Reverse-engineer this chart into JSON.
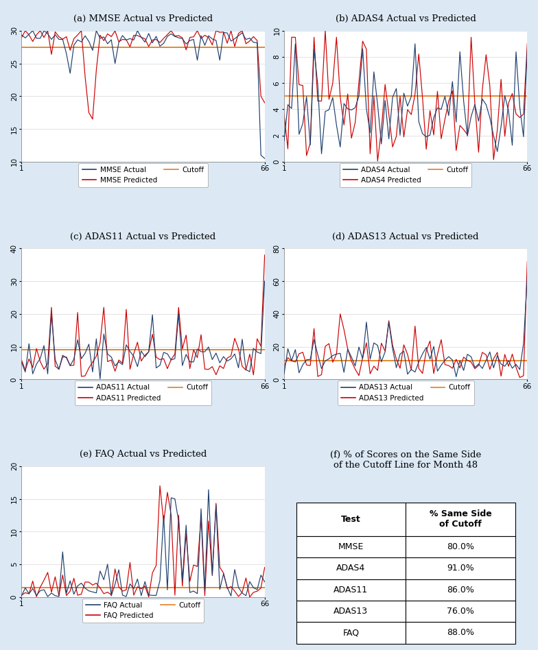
{
  "fig_bg_color": "#dce9f5",
  "plot_bg_color": "#ffffff",
  "panel_bg_color": "#dce9f5",
  "blue_color": "#1f3f6e",
  "red_color": "#cc0000",
  "orange_color": "#e08020",
  "grid_color": "#e8e8e8",
  "mmse_cutoff": 27.5,
  "adas4_cutoff": 5.0,
  "adas11_cutoff": 9.0,
  "adas13_cutoff": 11.5,
  "faq_cutoff": 1.5,
  "table_rows": [
    [
      "MMSE",
      "80.0%"
    ],
    [
      "ADAS4",
      "91.0%"
    ],
    [
      "ADAS11",
      "86.0%"
    ],
    [
      "ADAS13",
      "76.0%"
    ],
    [
      "FAQ",
      "88.0%"
    ]
  ],
  "subplot_titles": [
    "(a) MMSE Actual vs Predicted",
    "(b) ADAS4 Actual vs Predicted",
    "(c) ADAS11 Actual vs Predicted",
    "(d) ADAS13 Actual vs Predicted",
    "(e) FAQ Actual vs Predicted",
    "(f) % of Scores on the Same Side\nof the Cutoff Line for Month 48"
  ],
  "legend_labels": [
    [
      "MMSE Actual",
      "MMSE Predicted"
    ],
    [
      "ADAS4 Actual",
      "ADAS4 Predicted"
    ],
    [
      "ADAS11 Actual",
      "ADAS11 Predicted"
    ],
    [
      "ADAS13 Actual",
      "ADAS13 Predicted"
    ],
    [
      "FAQ Actual",
      "FAQ Predicted"
    ]
  ],
  "n_points": 66
}
